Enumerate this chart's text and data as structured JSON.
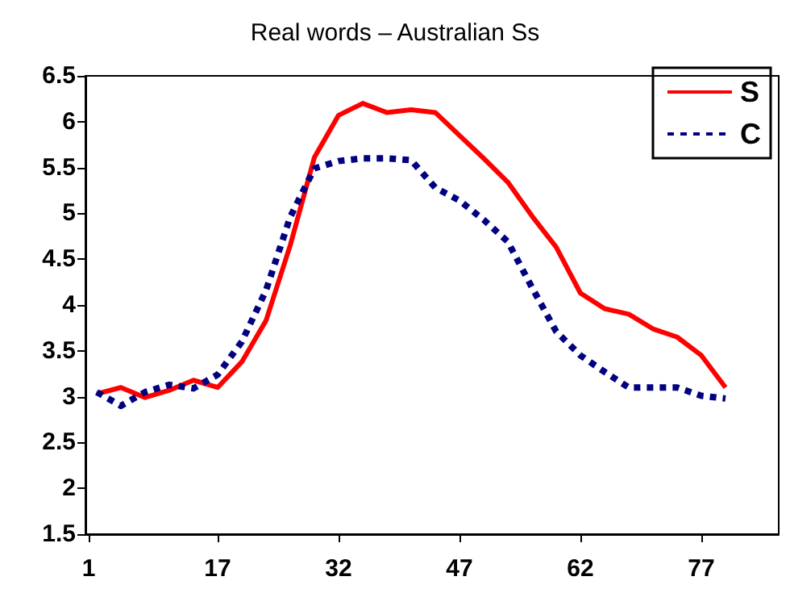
{
  "chart_data": {
    "type": "line",
    "title": "Real words – Australian Ss",
    "x": [
      2,
      5,
      8,
      11,
      14,
      17,
      20,
      23,
      26,
      29,
      32,
      35,
      38,
      41,
      44,
      47,
      50,
      53,
      56,
      59,
      62,
      65,
      68,
      71,
      74,
      77,
      80
    ],
    "series": [
      {
        "name": "S",
        "color": "#ff0000",
        "line_style": "solid",
        "values": [
          3.03,
          3.1,
          2.99,
          3.07,
          3.18,
          3.1,
          3.38,
          3.83,
          4.65,
          5.61,
          6.07,
          6.2,
          6.1,
          6.13,
          6.1,
          5.85,
          5.6,
          5.34,
          4.97,
          4.63,
          4.13,
          3.96,
          3.9,
          3.74,
          3.65,
          3.45,
          3.1
        ]
      },
      {
        "name": "C",
        "color": "#000080",
        "line_style": "dashed",
        "values": [
          3.05,
          2.9,
          3.05,
          3.13,
          3.09,
          3.24,
          3.6,
          4.16,
          4.96,
          5.49,
          5.57,
          5.6,
          5.6,
          5.58,
          5.28,
          5.14,
          4.93,
          4.69,
          4.19,
          3.71,
          3.45,
          3.27,
          3.1,
          3.1,
          3.1,
          3.01,
          2.98
        ]
      }
    ],
    "xlim": [
      0.6,
      86.6
    ],
    "xticks": [
      1,
      17,
      32,
      47,
      62,
      77
    ],
    "ylim": [
      1.5,
      6.5
    ],
    "yticks": [
      1.5,
      2,
      2.5,
      3,
      3.5,
      4,
      4.5,
      5,
      5.5,
      6,
      6.5
    ],
    "grid": false,
    "legend": "top right",
    "marker": "none"
  }
}
